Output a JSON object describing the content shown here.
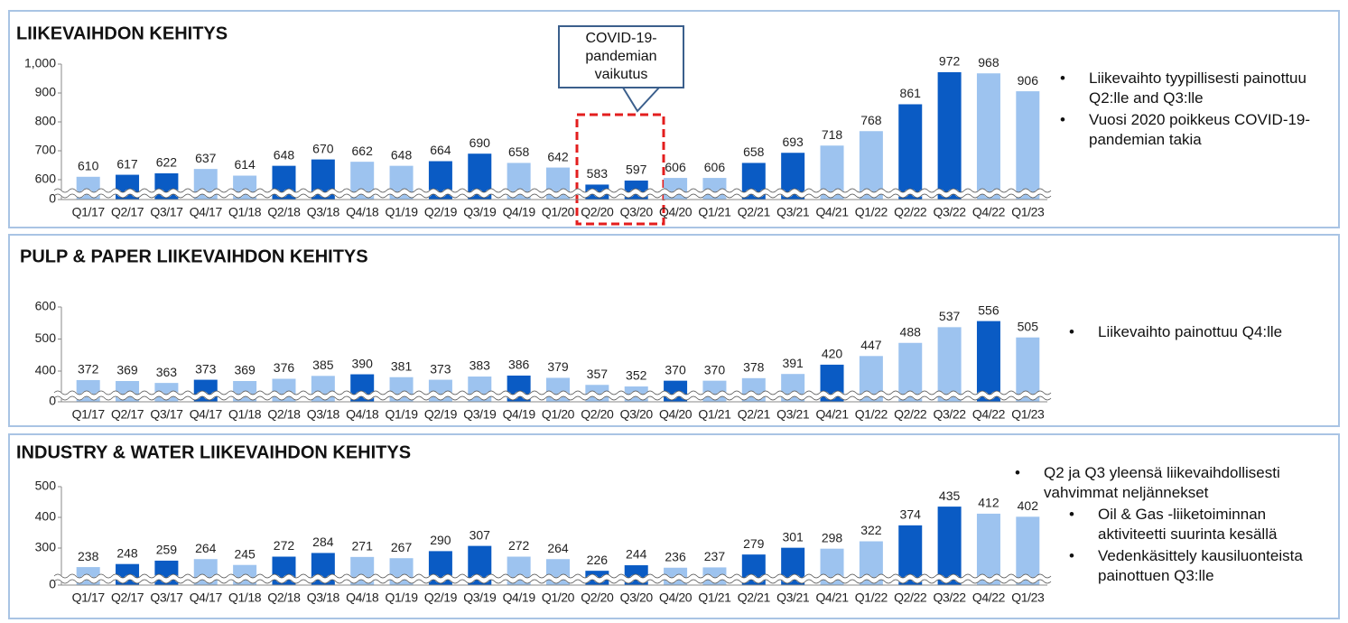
{
  "chart_data": [
    {
      "type": "bar",
      "title": "LIIKEVAIHDON KEHITYS",
      "categories": [
        "Q1/17",
        "Q2/17",
        "Q3/17",
        "Q4/17",
        "Q1/18",
        "Q2/18",
        "Q3/18",
        "Q4/18",
        "Q1/19",
        "Q2/19",
        "Q3/19",
        "Q4/19",
        "Q1/20",
        "Q2/20",
        "Q3/20",
        "Q4/20",
        "Q1/21",
        "Q2/21",
        "Q3/21",
        "Q4/21",
        "Q1/22",
        "Q2/22",
        "Q3/22",
        "Q4/22",
        "Q1/23"
      ],
      "values": [
        610,
        617,
        622,
        637,
        614,
        648,
        670,
        662,
        648,
        664,
        690,
        658,
        642,
        583,
        597,
        606,
        606,
        658,
        693,
        718,
        768,
        861,
        972,
        968,
        906
      ],
      "colors": [
        "#9dc3ef",
        "#0a5bc4",
        "#0a5bc4",
        "#9dc3ef",
        "#9dc3ef",
        "#0a5bc4",
        "#0a5bc4",
        "#9dc3ef",
        "#9dc3ef",
        "#0a5bc4",
        "#0a5bc4",
        "#9dc3ef",
        "#9dc3ef",
        "#0a5bc4",
        "#0a5bc4",
        "#9dc3ef",
        "#9dc3ef",
        "#0a5bc4",
        "#0a5bc4",
        "#9dc3ef",
        "#9dc3ef",
        "#0a5bc4",
        "#0a5bc4",
        "#9dc3ef",
        "#9dc3ef"
      ],
      "ylim": [
        0,
        1000
      ],
      "yticks": [
        0,
        600,
        700,
        800,
        900,
        {
          "value": 1000,
          "label": "1,000"
        }
      ],
      "axis_break": true,
      "callout": "COVID-19-pandemian vaikutus",
      "annotations": [
        "Liikevaihto tyypillisesti painottuu Q2:lle and Q3:lle",
        "Vuosi 2020 poikkeus COVID-19-pandemian takia"
      ]
    },
    {
      "type": "bar",
      "title": "PULP & PAPER LIIKEVAIHDON KEHITYS",
      "categories": [
        "Q1/17",
        "Q2/17",
        "Q3/17",
        "Q4/17",
        "Q1/18",
        "Q2/18",
        "Q3/18",
        "Q4/18",
        "Q1/19",
        "Q2/19",
        "Q3/19",
        "Q4/19",
        "Q1/20",
        "Q2/20",
        "Q3/20",
        "Q4/20",
        "Q1/21",
        "Q2/21",
        "Q3/21",
        "Q4/21",
        "Q1/22",
        "Q2/22",
        "Q3/22",
        "Q4/22",
        "Q1/23"
      ],
      "values": [
        372,
        369,
        363,
        373,
        369,
        376,
        385,
        390,
        381,
        373,
        383,
        386,
        379,
        357,
        352,
        370,
        370,
        378,
        391,
        420,
        447,
        488,
        537,
        556,
        505
      ],
      "colors": [
        "#9dc3ef",
        "#9dc3ef",
        "#9dc3ef",
        "#0a5bc4",
        "#9dc3ef",
        "#9dc3ef",
        "#9dc3ef",
        "#0a5bc4",
        "#9dc3ef",
        "#9dc3ef",
        "#9dc3ef",
        "#0a5bc4",
        "#9dc3ef",
        "#9dc3ef",
        "#9dc3ef",
        "#0a5bc4",
        "#9dc3ef",
        "#9dc3ef",
        "#9dc3ef",
        "#0a5bc4",
        "#9dc3ef",
        "#9dc3ef",
        "#9dc3ef",
        "#0a5bc4",
        "#9dc3ef"
      ],
      "ylim": [
        0,
        600
      ],
      "yticks": [
        0,
        400,
        500,
        600
      ],
      "axis_break": true,
      "annotations": [
        "Liikevaihto painottuu Q4:lle"
      ]
    },
    {
      "type": "bar",
      "title": "INDUSTRY & WATER LIIKEVAIHDON KEHITYS",
      "categories": [
        "Q1/17",
        "Q2/17",
        "Q3/17",
        "Q4/17",
        "Q1/18",
        "Q2/18",
        "Q3/18",
        "Q4/18",
        "Q1/19",
        "Q2/19",
        "Q3/19",
        "Q4/19",
        "Q1/20",
        "Q2/20",
        "Q3/20",
        "Q4/20",
        "Q1/21",
        "Q2/21",
        "Q3/21",
        "Q4/21",
        "Q1/22",
        "Q2/22",
        "Q3/22",
        "Q4/22",
        "Q1/23"
      ],
      "values": [
        238,
        248,
        259,
        264,
        245,
        272,
        284,
        271,
        267,
        290,
        307,
        272,
        264,
        226,
        244,
        236,
        237,
        279,
        301,
        298,
        322,
        374,
        435,
        412,
        402
      ],
      "colors": [
        "#9dc3ef",
        "#0a5bc4",
        "#0a5bc4",
        "#9dc3ef",
        "#9dc3ef",
        "#0a5bc4",
        "#0a5bc4",
        "#9dc3ef",
        "#9dc3ef",
        "#0a5bc4",
        "#0a5bc4",
        "#9dc3ef",
        "#9dc3ef",
        "#0a5bc4",
        "#0a5bc4",
        "#9dc3ef",
        "#9dc3ef",
        "#0a5bc4",
        "#0a5bc4",
        "#9dc3ef",
        "#9dc3ef",
        "#0a5bc4",
        "#0a5bc4",
        "#9dc3ef",
        "#9dc3ef"
      ],
      "ylim": [
        0,
        500
      ],
      "yticks": [
        0,
        300,
        400,
        500
      ],
      "axis_break": true,
      "annotations": [
        "Q2 ja Q3 yleensä liikevaihdollisesti vahvimmat neljännekset"
      ],
      "sub_annotations": [
        "Oil & Gas -liiketoiminnan aktiviteetti suurinta kesällä",
        "Vedenkäsittely kausiluonteista painottuen Q3:lle"
      ]
    }
  ]
}
